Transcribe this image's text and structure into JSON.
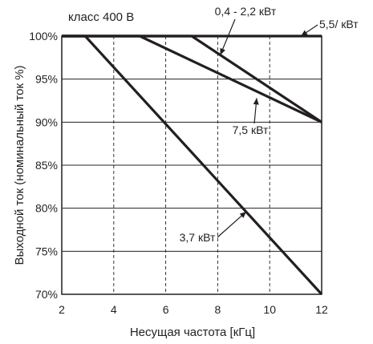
{
  "chart_data": {
    "type": "line",
    "title": "",
    "class_label": "класс 400 В",
    "xlabel": "Несущая частота [кГц]",
    "ylabel": "Выходной ток (номинальный ток %)",
    "xlim": [
      2,
      12
    ],
    "ylim": [
      70,
      100
    ],
    "x_ticks": [
      "2",
      "4",
      "6",
      "8",
      "10",
      "12"
    ],
    "y_ticks": [
      "70%",
      "75%",
      "80%",
      "85%",
      "90%",
      "95%",
      "100%"
    ],
    "grid": {
      "x": "dashed",
      "y": "solid"
    },
    "colors": {
      "series": "#231f20",
      "grid": "#231f20"
    },
    "series": [
      {
        "name": "0,4 - 2,2 кВт",
        "x": [
          2,
          7,
          12
        ],
        "y": [
          100,
          100,
          90
        ]
      },
      {
        "name": "3,7 кВт",
        "x": [
          2,
          2.9,
          12
        ],
        "y": [
          100,
          100,
          70
        ]
      },
      {
        "name": "5,5/ кВт",
        "x": [
          2,
          12
        ],
        "y": [
          100,
          100
        ]
      },
      {
        "name": "7,5 кВт",
        "x": [
          2,
          5,
          12
        ],
        "y": [
          100,
          100,
          90
        ]
      }
    ],
    "annotations": [
      {
        "text": "0,4 - 2,2 кВт",
        "series": 0,
        "at": [
          8.1,
          97.8
        ]
      },
      {
        "text": "3,7 кВт",
        "series": 1,
        "at": [
          9.1,
          79.6
        ]
      },
      {
        "text": "5,5/ кВт",
        "series": 2,
        "at": [
          11.2,
          100
        ]
      },
      {
        "text": "7,5 кВт",
        "series": 3,
        "at": [
          9.5,
          92.8
        ]
      }
    ]
  }
}
